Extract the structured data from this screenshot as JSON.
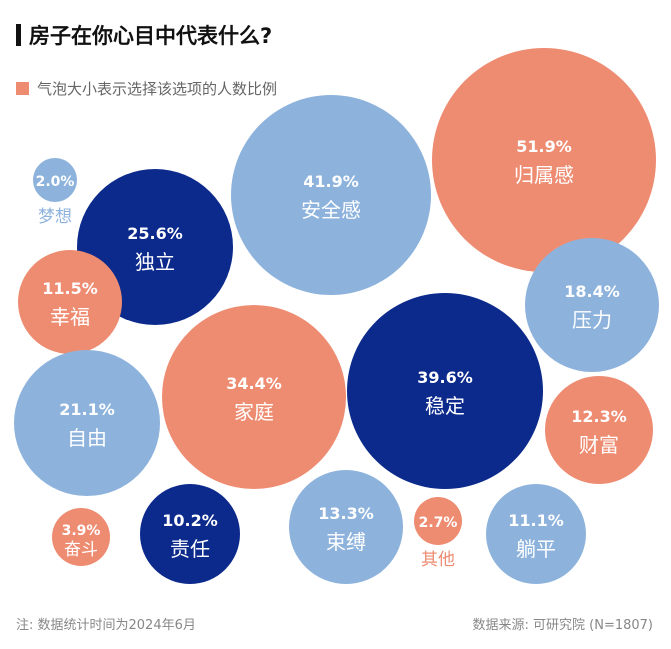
{
  "chart_data": {
    "type": "bubble",
    "title": "房子在你心目中代表什么?",
    "legend": "气泡大小表示选择该选项的人数比例",
    "unit": "%",
    "items": [
      {
        "label": "梦想",
        "value": 2.0,
        "value_label": "2.0%",
        "color": "#8DB3DD"
      },
      {
        "label": "独立",
        "value": 25.6,
        "value_label": "25.6%",
        "color": "#0B2A8C"
      },
      {
        "label": "安全感",
        "value": 41.9,
        "value_label": "41.9%",
        "color": "#8DB3DD"
      },
      {
        "label": "归属感",
        "value": 51.9,
        "value_label": "51.9%",
        "color": "#EE8C72"
      },
      {
        "label": "幸福",
        "value": 11.5,
        "value_label": "11.5%",
        "color": "#EE8C72"
      },
      {
        "label": "压力",
        "value": 18.4,
        "value_label": "18.4%",
        "color": "#8DB3DD"
      },
      {
        "label": "自由",
        "value": 21.1,
        "value_label": "21.1%",
        "color": "#8DB3DD"
      },
      {
        "label": "家庭",
        "value": 34.4,
        "value_label": "34.4%",
        "color": "#EE8C72"
      },
      {
        "label": "稳定",
        "value": 39.6,
        "value_label": "39.6%",
        "color": "#0B2A8C"
      },
      {
        "label": "财富",
        "value": 12.3,
        "value_label": "12.3%",
        "color": "#EE8C72"
      },
      {
        "label": "奋斗",
        "value": 3.9,
        "value_label": "3.9%",
        "color": "#EE8C72"
      },
      {
        "label": "责任",
        "value": 10.2,
        "value_label": "10.2%",
        "color": "#0B2A8C"
      },
      {
        "label": "束缚",
        "value": 13.3,
        "value_label": "13.3%",
        "color": "#8DB3DD"
      },
      {
        "label": "其他",
        "value": 2.7,
        "value_label": "2.7%",
        "color": "#EE8C72"
      },
      {
        "label": "躺平",
        "value": 11.1,
        "value_label": "11.1%",
        "color": "#8DB3DD"
      }
    ]
  },
  "legend_color": "#EE8C72",
  "footer": {
    "note": "注: 数据统计时间为2024年6月",
    "source": "数据来源: 可研究院 (N=1807)"
  }
}
